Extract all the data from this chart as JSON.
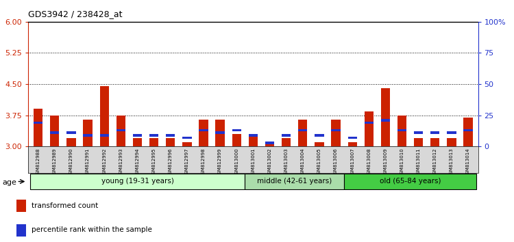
{
  "title": "GDS3942 / 238428_at",
  "samples": [
    "GSM812988",
    "GSM812989",
    "GSM812990",
    "GSM812991",
    "GSM812992",
    "GSM812993",
    "GSM812994",
    "GSM812995",
    "GSM812996",
    "GSM812997",
    "GSM812998",
    "GSM812999",
    "GSM813000",
    "GSM813001",
    "GSM813002",
    "GSM813003",
    "GSM813004",
    "GSM813005",
    "GSM813006",
    "GSM813007",
    "GSM813008",
    "GSM813009",
    "GSM813010",
    "GSM813011",
    "GSM813012",
    "GSM813013",
    "GSM813014"
  ],
  "red_values": [
    3.9,
    3.75,
    3.2,
    3.65,
    4.45,
    3.75,
    3.2,
    3.2,
    3.2,
    3.1,
    3.65,
    3.65,
    3.3,
    3.3,
    3.05,
    3.2,
    3.65,
    3.1,
    3.65,
    3.1,
    3.85,
    4.4,
    3.75,
    3.2,
    3.2,
    3.2,
    3.7
  ],
  "blue_pct": [
    20,
    12,
    12,
    10,
    10,
    14,
    10,
    10,
    10,
    8,
    14,
    12,
    14,
    10,
    4,
    10,
    14,
    10,
    14,
    8,
    20,
    22,
    14,
    12,
    12,
    12,
    14
  ],
  "red_color": "#cc2200",
  "blue_color": "#2233cc",
  "ylim_left": [
    3.0,
    6.0
  ],
  "ylim_right": [
    0,
    100
  ],
  "yticks_left": [
    3.0,
    3.75,
    4.5,
    5.25,
    6.0
  ],
  "yticks_right": [
    0,
    25,
    50,
    75,
    100
  ],
  "ytick_labels_right": [
    "0",
    "25",
    "50",
    "75",
    "100%"
  ],
  "hlines": [
    3.75,
    4.5,
    5.25
  ],
  "groups": [
    {
      "label": "young (19-31 years)",
      "start": 0,
      "end": 13,
      "color": "#ccffcc"
    },
    {
      "label": "middle (42-61 years)",
      "start": 13,
      "end": 19,
      "color": "#aaddaa"
    },
    {
      "label": "old (65-84 years)",
      "start": 19,
      "end": 27,
      "color": "#44cc44"
    }
  ],
  "age_label": "age",
  "legend": [
    {
      "label": "transformed count",
      "color": "#cc2200"
    },
    {
      "label": "percentile rank within the sample",
      "color": "#2233cc"
    }
  ],
  "bar_width": 0.55,
  "xtick_bg": "#d8d8d8",
  "plot_bg": "#ffffff"
}
